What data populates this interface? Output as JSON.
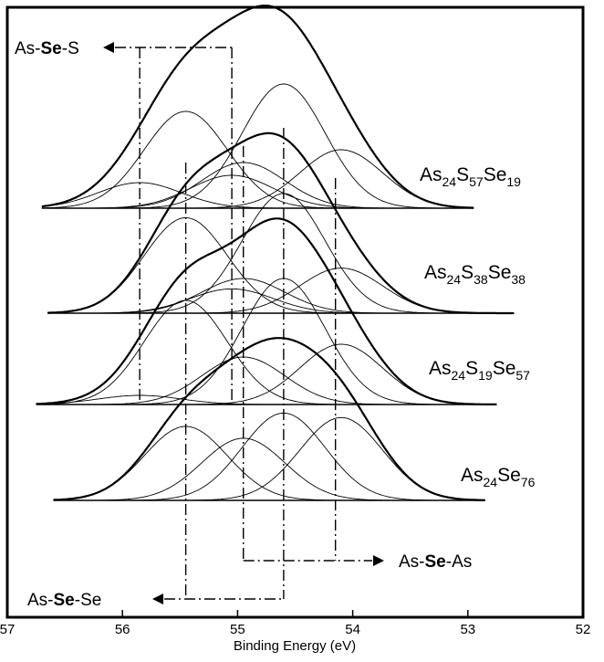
{
  "chart_data": {
    "type": "line",
    "xlabel": "Binding Energy (eV)",
    "xlim": [
      57,
      52
    ],
    "x_reversed": true,
    "xticks": [
      "57",
      "56",
      "55",
      "54",
      "53",
      "52"
    ],
    "y_axis_visible": false,
    "grid": false,
    "peak_labels": [
      {
        "prefix": "As-",
        "bold": "Se",
        "suffix": "-S",
        "energy": 55.05,
        "direction": "left"
      },
      {
        "prefix": "As-",
        "bold": "Se",
        "suffix": "-As",
        "energy": 54.95,
        "energy2": 54.15,
        "direction": "right"
      },
      {
        "prefix": "As-",
        "bold": "Se",
        "suffix": "-Se",
        "energy": 55.45,
        "energy2": 54.6,
        "direction": "left"
      }
    ],
    "reference_energies": [
      55.85,
      55.05,
      55.45,
      54.6,
      54.95,
      54.15
    ],
    "spectra": [
      {
        "label_parts": [
          [
            "As",
            ""
          ],
          [
            "24",
            "sub"
          ],
          [
            "S",
            ""
          ],
          [
            "57",
            "sub"
          ],
          [
            "Se",
            ""
          ],
          [
            "19",
            "sub"
          ]
        ],
        "x_range": [
          56.7,
          52.95
        ],
        "components": [
          {
            "center": 55.45,
            "height": 0.53
          },
          {
            "center": 54.6,
            "height": 0.68
          },
          {
            "center": 54.1,
            "height": 0.32
          },
          {
            "center": 54.95,
            "height": 0.25
          },
          {
            "center": 55.85,
            "height": 0.14
          },
          {
            "center": 55.05,
            "height": 0.18
          }
        ]
      },
      {
        "label_parts": [
          [
            "As",
            ""
          ],
          [
            "24",
            "sub"
          ],
          [
            "S",
            ""
          ],
          [
            "38",
            "sub"
          ],
          [
            "Se",
            ""
          ],
          [
            "38",
            "sub"
          ]
        ],
        "x_range": [
          56.65,
          52.6
        ],
        "components": [
          {
            "center": 55.45,
            "height": 0.55
          },
          {
            "center": 54.6,
            "height": 0.69
          },
          {
            "center": 54.1,
            "height": 0.26
          },
          {
            "center": 54.95,
            "height": 0.2
          },
          {
            "center": 55.05,
            "height": 0.14
          }
        ]
      },
      {
        "label_parts": [
          [
            "As",
            ""
          ],
          [
            "24",
            "sub"
          ],
          [
            "S",
            ""
          ],
          [
            "19",
            "sub"
          ],
          [
            "Se",
            ""
          ],
          [
            "57",
            "sub"
          ]
        ],
        "x_range": [
          56.75,
          52.75
        ],
        "components": [
          {
            "center": 55.45,
            "height": 0.57
          },
          {
            "center": 54.6,
            "height": 0.69
          },
          {
            "center": 54.1,
            "height": 0.33
          },
          {
            "center": 54.95,
            "height": 0.26
          },
          {
            "center": 55.85,
            "height": 0.05
          }
        ]
      },
      {
        "label_parts": [
          [
            "As",
            ""
          ],
          [
            "24",
            "sub"
          ],
          [
            "Se",
            ""
          ],
          [
            "76",
            "sub"
          ]
        ],
        "x_range": [
          56.6,
          52.85
        ],
        "components": [
          {
            "center": 55.45,
            "height": 0.5
          },
          {
            "center": 54.6,
            "height": 0.59
          },
          {
            "center": 54.1,
            "height": 0.56
          },
          {
            "center": 54.95,
            "height": 0.42
          }
        ]
      }
    ]
  }
}
